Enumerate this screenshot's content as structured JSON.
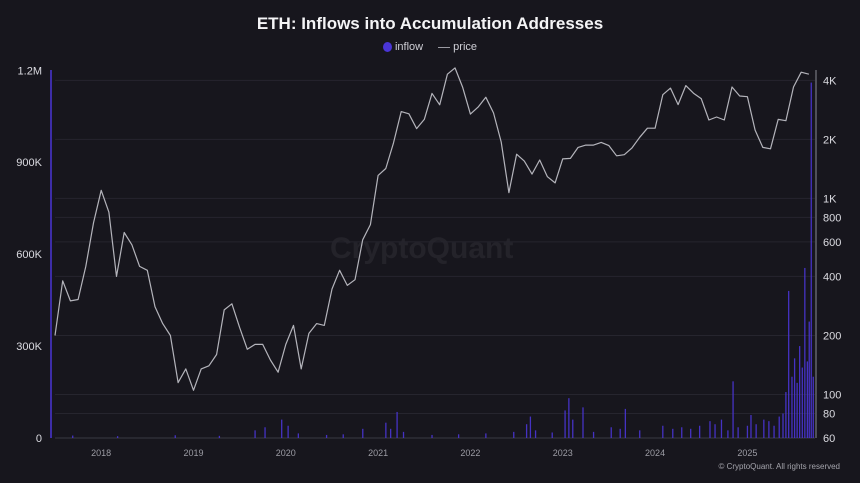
{
  "chart_data": {
    "type": "bar+line",
    "title": "ETH: Inflows into Accumulation Addresses",
    "legend": {
      "placement": "top-center",
      "entries": [
        "inflow",
        "price"
      ]
    },
    "colors": {
      "inflow": "#4a35d6",
      "price": "#b4b4bb",
      "background": "#17161d"
    },
    "x_ticks": [
      "2018",
      "2019",
      "2020",
      "2021",
      "2022",
      "2023",
      "2024",
      "2025"
    ],
    "xlim": [
      "2017-07-01",
      "2025-09-25"
    ],
    "left_axis": {
      "series": "inflow",
      "ticks": [
        "0",
        "300K",
        "600K",
        "900K",
        "1.2M"
      ],
      "tick_values": [
        0,
        300000,
        600000,
        900000,
        1200000
      ],
      "ylim": [
        0,
        1250000
      ]
    },
    "right_axis": {
      "series": "price",
      "scale": "log",
      "ticks": [
        "4K",
        "2K",
        "1K",
        "800",
        "600",
        "400",
        "200",
        "100",
        "80",
        "60"
      ],
      "tick_values": [
        4000,
        2000,
        1000,
        800,
        600,
        400,
        200,
        100,
        80,
        60
      ],
      "ylim": [
        60,
        5200
      ]
    },
    "grid": true,
    "price": {
      "start": "2017-07",
      "frequency": "monthly",
      "values": [
        200,
        380,
        300,
        305,
        450,
        750,
        1100,
        850,
        400,
        670,
        580,
        450,
        430,
        280,
        230,
        200,
        115,
        135,
        105,
        135,
        140,
        160,
        270,
        290,
        220,
        170,
        180,
        180,
        150,
        130,
        180,
        225,
        135,
        205,
        230,
        225,
        345,
        430,
        360,
        385,
        615,
        735,
        1310,
        1420,
        1920,
        2770,
        2700,
        2270,
        2530,
        3430,
        3000,
        4300,
        4630,
        3680,
        2690,
        2920,
        3280,
        2730,
        1940,
        1070,
        1680,
        1550,
        1330,
        1570,
        1290,
        1200,
        1590,
        1600,
        1820,
        1870,
        1870,
        1930,
        1860,
        1650,
        1670,
        1810,
        2050,
        2280,
        2280,
        3380,
        3650,
        3010,
        3760,
        3440,
        3230,
        2510,
        2600,
        2510,
        3700,
        3330,
        3300,
        2230,
        1820,
        1790,
        2530,
        2490,
        3700,
        4400,
        4300
      ]
    },
    "inflow": [
      [
        "2017-09-10",
        8000
      ],
      [
        "2018-03-05",
        6000
      ],
      [
        "2018-10-20",
        9000
      ],
      [
        "2019-04-12",
        7000
      ],
      [
        "2019-09-01",
        25000
      ],
      [
        "2019-10-10",
        35000
      ],
      [
        "2019-12-15",
        60000
      ],
      [
        "2020-01-10",
        40000
      ],
      [
        "2020-02-20",
        15000
      ],
      [
        "2020-06-10",
        10000
      ],
      [
        "2020-08-15",
        12000
      ],
      [
        "2020-11-01",
        30000
      ],
      [
        "2021-02-01",
        50000
      ],
      [
        "2021-02-20",
        30000
      ],
      [
        "2021-03-15",
        85000
      ],
      [
        "2021-04-10",
        20000
      ],
      [
        "2021-08-01",
        10000
      ],
      [
        "2021-11-15",
        12000
      ],
      [
        "2022-03-01",
        15000
      ],
      [
        "2022-06-20",
        20000
      ],
      [
        "2022-08-10",
        45000
      ],
      [
        "2022-08-25",
        70000
      ],
      [
        "2022-09-15",
        25000
      ],
      [
        "2022-11-20",
        18000
      ],
      [
        "2023-01-10",
        90000
      ],
      [
        "2023-01-25",
        130000
      ],
      [
        "2023-02-10",
        60000
      ],
      [
        "2023-03-20",
        100000
      ],
      [
        "2023-05-01",
        20000
      ],
      [
        "2023-07-10",
        35000
      ],
      [
        "2023-08-15",
        30000
      ],
      [
        "2023-09-05",
        95000
      ],
      [
        "2023-11-01",
        25000
      ],
      [
        "2024-02-01",
        40000
      ],
      [
        "2024-03-10",
        30000
      ],
      [
        "2024-04-15",
        35000
      ],
      [
        "2024-05-20",
        30000
      ],
      [
        "2024-06-25",
        40000
      ],
      [
        "2024-08-05",
        55000
      ],
      [
        "2024-08-25",
        45000
      ],
      [
        "2024-09-20",
        60000
      ],
      [
        "2024-10-15",
        25000
      ],
      [
        "2024-11-05",
        185000
      ],
      [
        "2024-11-25",
        35000
      ],
      [
        "2025-01-01",
        40000
      ],
      [
        "2025-01-15",
        75000
      ],
      [
        "2025-02-05",
        45000
      ],
      [
        "2025-03-05",
        60000
      ],
      [
        "2025-03-25",
        55000
      ],
      [
        "2025-04-15",
        40000
      ],
      [
        "2025-05-05",
        70000
      ],
      [
        "2025-05-20",
        80000
      ],
      [
        "2025-06-01",
        150000
      ],
      [
        "2025-06-12",
        480000
      ],
      [
        "2025-06-25",
        200000
      ],
      [
        "2025-07-05",
        260000
      ],
      [
        "2025-07-15",
        180000
      ],
      [
        "2025-07-25",
        300000
      ],
      [
        "2025-08-05",
        230000
      ],
      [
        "2025-08-15",
        555000
      ],
      [
        "2025-08-25",
        250000
      ],
      [
        "2025-09-02",
        380000
      ],
      [
        "2025-09-10",
        1160000
      ],
      [
        "2025-09-18",
        200000
      ]
    ]
  },
  "watermark": "CryptoQuant",
  "copyright": "© CryptoQuant. All rights reserved"
}
